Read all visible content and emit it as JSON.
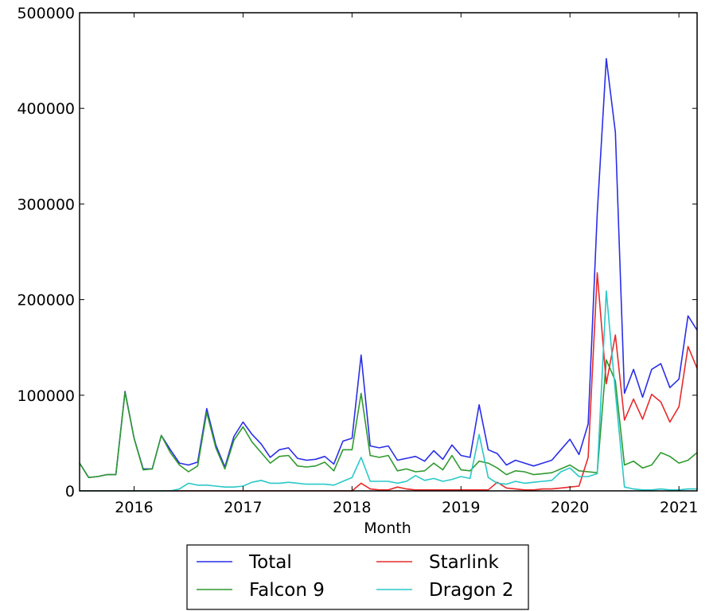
{
  "chart_data": {
    "type": "line",
    "title": "",
    "xlabel": "Month",
    "ylabel": "",
    "x_tick_labels": [
      "2016",
      "2017",
      "2018",
      "2019",
      "2020",
      "2021"
    ],
    "y_tick_labels": [
      "0",
      "100000",
      "200000",
      "300000",
      "400000",
      "500000"
    ],
    "ylim": [
      0,
      500000
    ],
    "xlim": [
      "2015-07",
      "2021-03"
    ],
    "x": [
      "2015-07",
      "2015-08",
      "2015-09",
      "2015-10",
      "2015-11",
      "2015-12",
      "2016-01",
      "2016-02",
      "2016-03",
      "2016-04",
      "2016-05",
      "2016-06",
      "2016-07",
      "2016-08",
      "2016-09",
      "2016-10",
      "2016-11",
      "2016-12",
      "2017-01",
      "2017-02",
      "2017-03",
      "2017-04",
      "2017-05",
      "2017-06",
      "2017-07",
      "2017-08",
      "2017-09",
      "2017-10",
      "2017-11",
      "2017-12",
      "2018-01",
      "2018-02",
      "2018-03",
      "2018-04",
      "2018-05",
      "2018-06",
      "2018-07",
      "2018-08",
      "2018-09",
      "2018-10",
      "2018-11",
      "2018-12",
      "2019-01",
      "2019-02",
      "2019-03",
      "2019-04",
      "2019-05",
      "2019-06",
      "2019-07",
      "2019-08",
      "2019-09",
      "2019-10",
      "2019-11",
      "2019-12",
      "2020-01",
      "2020-02",
      "2020-03",
      "2020-04",
      "2020-05",
      "2020-06",
      "2020-07",
      "2020-08",
      "2020-09",
      "2020-10",
      "2020-11",
      "2020-12",
      "2021-01",
      "2021-02",
      "2021-03"
    ],
    "grid": false,
    "legend_position": "bottom-center",
    "series": [
      {
        "name": "Total",
        "color": "#2a2ee8",
        "values": [
          29000,
          14000,
          15000,
          17000,
          17000,
          104000,
          55000,
          23000,
          23000,
          58000,
          43000,
          29000,
          27000,
          30000,
          86000,
          48000,
          25000,
          57000,
          72000,
          59000,
          49000,
          35000,
          43000,
          45000,
          34000,
          32000,
          33000,
          36000,
          28000,
          52000,
          55000,
          142000,
          47000,
          45000,
          47000,
          32000,
          34000,
          36000,
          31000,
          42000,
          33000,
          48000,
          37000,
          35000,
          90000,
          43000,
          39000,
          27000,
          32000,
          29000,
          26000,
          29000,
          32000,
          43000,
          54000,
          38000,
          70000,
          290000,
          452000,
          375000,
          102000,
          127000,
          98000,
          127000,
          133000,
          108000,
          117000,
          183000,
          168000
        ]
      },
      {
        "name": "Falcon 9",
        "color": "#2f9a2f",
        "values": [
          29000,
          14000,
          15000,
          17000,
          17000,
          103000,
          55000,
          22000,
          23000,
          58000,
          40000,
          27000,
          20000,
          26000,
          82000,
          45000,
          23000,
          53000,
          67000,
          51000,
          40000,
          29000,
          36000,
          37000,
          26000,
          25000,
          26000,
          30000,
          21000,
          43000,
          43000,
          102000,
          37000,
          35000,
          37000,
          21000,
          23000,
          20000,
          21000,
          29000,
          22000,
          37000,
          22000,
          21000,
          31000,
          29000,
          24000,
          17000,
          21000,
          20000,
          17000,
          18000,
          19000,
          23000,
          27000,
          21000,
          20000,
          19000,
          137000,
          115000,
          27000,
          31000,
          24000,
          27000,
          40000,
          36000,
          29000,
          32000,
          40000
        ]
      },
      {
        "name": "Starlink",
        "color": "#e82a2a",
        "values": [
          0,
          0,
          0,
          0,
          0,
          0,
          0,
          0,
          0,
          0,
          0,
          0,
          0,
          0,
          0,
          0,
          0,
          0,
          0,
          0,
          0,
          0,
          0,
          0,
          0,
          0,
          0,
          0,
          0,
          0,
          0,
          8000,
          2000,
          1000,
          1000,
          4000,
          2000,
          1000,
          1000,
          1000,
          1000,
          1000,
          1000,
          1000,
          1000,
          1000,
          9000,
          3000,
          2000,
          1000,
          1000,
          2000,
          2000,
          3000,
          4000,
          5000,
          35000,
          228000,
          112000,
          163000,
          74000,
          96000,
          75000,
          101000,
          93000,
          72000,
          88000,
          151000,
          128000
        ]
      },
      {
        "name": "Dragon 2",
        "color": "#2ac8c8",
        "values": [
          0,
          0,
          0,
          0,
          0,
          0,
          0,
          0,
          0,
          0,
          0,
          2000,
          8000,
          6000,
          6000,
          5000,
          4000,
          4000,
          5000,
          9000,
          11000,
          8000,
          8000,
          9000,
          8000,
          7000,
          7000,
          7000,
          6000,
          10000,
          14000,
          35000,
          10000,
          10000,
          10000,
          8000,
          10000,
          16000,
          11000,
          13000,
          10000,
          12000,
          15000,
          13000,
          59000,
          14000,
          8000,
          7000,
          10000,
          8000,
          9000,
          10000,
          11000,
          20000,
          24000,
          15000,
          15000,
          18000,
          209000,
          103000,
          4000,
          2000,
          1000,
          1000,
          2000,
          1000,
          1000,
          2000,
          2000
        ]
      }
    ]
  }
}
